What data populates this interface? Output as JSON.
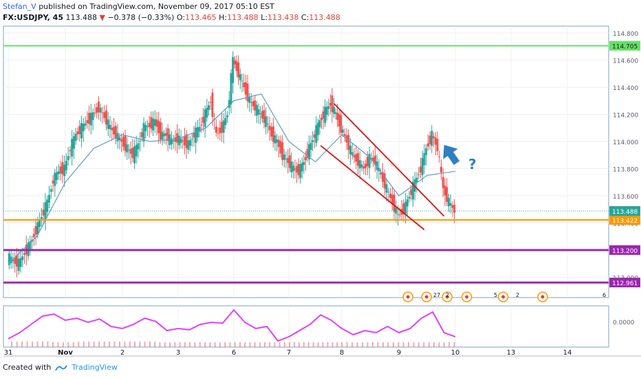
{
  "header": {
    "author": "Stefan_V",
    "published_text": "published on TradingView.com, November 09, 2017 05:10 EST",
    "symbol": "FX:USDJPY, 45",
    "last": "113.488",
    "change_arrow": "▼",
    "change": "−0.378 (−0.33%)",
    "open_label": "O:",
    "open": "113.465",
    "high_label": "H:",
    "high": "113.488",
    "low_label": "L:",
    "low": "113.438",
    "close_label": "C:",
    "close": "113.488"
  },
  "footer": {
    "created_with": "Created with",
    "brand": "TradingView"
  },
  "annotation": {
    "question_mark": "?"
  },
  "event_badges": [
    "27",
    "2",
    "5",
    "2",
    "6"
  ],
  "colors": {
    "up": "#26a69a",
    "down": "#ef5350",
    "ma": "#5d9bc4",
    "resistance": "#66e066",
    "support_orange": "#ff9800",
    "support_purple": "#9c27b0",
    "channel": "#e01010",
    "oscillator": "#e040fb",
    "arrow": "#2f7fc1"
  },
  "chart_data": {
    "type": "candlestick",
    "symbol": "FX:USDJPY",
    "interval": "45",
    "ylim": [
      112.85,
      114.85
    ],
    "y_ticks": [
      "114.800",
      "114.600",
      "114.400",
      "114.200",
      "114.000",
      "113.800",
      "113.600",
      "113.400",
      "113.200",
      "113.000"
    ],
    "x_ticks": [
      {
        "label": "31",
        "day": 0
      },
      {
        "label": "Nov",
        "day": 1
      },
      {
        "label": "2",
        "day": 2
      },
      {
        "label": "3",
        "day": 3
      },
      {
        "label": "6",
        "day": 4
      },
      {
        "label": "7",
        "day": 5
      },
      {
        "label": "8",
        "day": 6
      },
      {
        "label": "9",
        "day": 7
      },
      {
        "label": "10",
        "day": 8
      },
      {
        "label": "13",
        "day": 9
      },
      {
        "label": "14",
        "day": 10
      }
    ],
    "price_close_path": [
      [
        0.0,
        113.15
      ],
      [
        0.1,
        113.12
      ],
      [
        0.2,
        113.1
      ],
      [
        0.3,
        113.18
      ],
      [
        0.4,
        113.25
      ],
      [
        0.5,
        113.35
      ],
      [
        0.6,
        113.45
      ],
      [
        0.7,
        113.55
      ],
      [
        0.8,
        113.72
      ],
      [
        0.9,
        113.78
      ],
      [
        1.0,
        113.8
      ],
      [
        1.1,
        113.95
      ],
      [
        1.2,
        114.05
      ],
      [
        1.3,
        114.1
      ],
      [
        1.4,
        114.15
      ],
      [
        1.5,
        114.2
      ],
      [
        1.6,
        114.25
      ],
      [
        1.7,
        114.18
      ],
      [
        1.8,
        114.1
      ],
      [
        1.9,
        114.05
      ],
      [
        2.0,
        114.0
      ],
      [
        2.1,
        113.95
      ],
      [
        2.2,
        113.9
      ],
      [
        2.3,
        113.98
      ],
      [
        2.4,
        114.1
      ],
      [
        2.5,
        114.12
      ],
      [
        2.6,
        114.15
      ],
      [
        2.7,
        114.05
      ],
      [
        2.8,
        114.05
      ],
      [
        2.9,
        114.0
      ],
      [
        3.0,
        114.02
      ],
      [
        3.1,
        114.0
      ],
      [
        3.2,
        113.98
      ],
      [
        3.3,
        114.05
      ],
      [
        3.4,
        114.1
      ],
      [
        3.5,
        114.2
      ],
      [
        3.6,
        114.3
      ],
      [
        3.7,
        114.05
      ],
      [
        3.8,
        114.1
      ],
      [
        3.9,
        114.2
      ],
      [
        4.0,
        114.6
      ],
      [
        4.1,
        114.5
      ],
      [
        4.2,
        114.4
      ],
      [
        4.3,
        114.3
      ],
      [
        4.4,
        114.25
      ],
      [
        4.5,
        114.2
      ],
      [
        4.6,
        114.15
      ],
      [
        4.7,
        114.05
      ],
      [
        4.8,
        114.0
      ],
      [
        4.9,
        113.9
      ],
      [
        5.0,
        113.85
      ],
      [
        5.1,
        113.8
      ],
      [
        5.2,
        113.78
      ],
      [
        5.3,
        113.85
      ],
      [
        5.4,
        113.95
      ],
      [
        5.5,
        114.05
      ],
      [
        5.6,
        114.15
      ],
      [
        5.7,
        114.22
      ],
      [
        5.8,
        114.28
      ],
      [
        5.9,
        114.2
      ],
      [
        6.0,
        114.1
      ],
      [
        6.1,
        114.0
      ],
      [
        6.2,
        113.9
      ],
      [
        6.3,
        113.85
      ],
      [
        6.4,
        113.8
      ],
      [
        6.5,
        113.88
      ],
      [
        6.6,
        113.85
      ],
      [
        6.7,
        113.75
      ],
      [
        6.8,
        113.65
      ],
      [
        6.9,
        113.55
      ],
      [
        7.0,
        113.45
      ],
      [
        7.1,
        113.5
      ],
      [
        7.2,
        113.6
      ],
      [
        7.3,
        113.7
      ],
      [
        7.4,
        113.8
      ],
      [
        7.5,
        113.95
      ],
      [
        7.6,
        114.05
      ],
      [
        7.7,
        113.95
      ],
      [
        7.8,
        113.65
      ],
      [
        7.9,
        113.55
      ],
      [
        8.0,
        113.49
      ]
    ],
    "moving_average_path": [
      [
        0.0,
        113.1
      ],
      [
        0.5,
        113.3
      ],
      [
        1.0,
        113.7
      ],
      [
        1.5,
        113.95
      ],
      [
        2.0,
        114.05
      ],
      [
        2.5,
        114.0
      ],
      [
        3.0,
        114.02
      ],
      [
        3.5,
        114.1
      ],
      [
        4.0,
        114.3
      ],
      [
        4.5,
        114.35
      ],
      [
        5.0,
        114.0
      ],
      [
        5.5,
        113.85
      ],
      [
        6.0,
        114.05
      ],
      [
        6.5,
        113.88
      ],
      [
        7.0,
        113.6
      ],
      [
        7.5,
        113.75
      ],
      [
        8.0,
        113.78
      ]
    ],
    "oscillator_path": [
      [
        0.0,
        0.2
      ],
      [
        0.2,
        0.35
      ],
      [
        0.4,
        0.55
      ],
      [
        0.6,
        0.75
      ],
      [
        0.8,
        0.8
      ],
      [
        1.0,
        0.65
      ],
      [
        1.2,
        0.7
      ],
      [
        1.4,
        0.6
      ],
      [
        1.6,
        0.68
      ],
      [
        1.8,
        0.5
      ],
      [
        2.0,
        0.45
      ],
      [
        2.2,
        0.55
      ],
      [
        2.4,
        0.7
      ],
      [
        2.6,
        0.62
      ],
      [
        2.8,
        0.4
      ],
      [
        3.0,
        0.45
      ],
      [
        3.2,
        0.42
      ],
      [
        3.4,
        0.55
      ],
      [
        3.6,
        0.6
      ],
      [
        3.8,
        0.58
      ],
      [
        4.0,
        0.9
      ],
      [
        4.2,
        0.6
      ],
      [
        4.4,
        0.45
      ],
      [
        4.6,
        0.5
      ],
      [
        4.8,
        0.15
      ],
      [
        5.0,
        0.25
      ],
      [
        5.2,
        0.4
      ],
      [
        5.4,
        0.55
      ],
      [
        5.6,
        0.78
      ],
      [
        5.8,
        0.65
      ],
      [
        6.0,
        0.45
      ],
      [
        6.2,
        0.3
      ],
      [
        6.4,
        0.4
      ],
      [
        6.6,
        0.35
      ],
      [
        6.8,
        0.5
      ],
      [
        7.0,
        0.35
      ],
      [
        7.2,
        0.45
      ],
      [
        7.4,
        0.7
      ],
      [
        7.6,
        0.85
      ],
      [
        7.8,
        0.35
      ],
      [
        8.0,
        0.25
      ]
    ],
    "annotations": [
      {
        "type": "horizontal_line",
        "label": "114.705",
        "price": 114.705
      },
      {
        "type": "horizontal_line",
        "label": "113.422",
        "price": 113.422
      },
      {
        "type": "horizontal_line",
        "label": "113.200",
        "price": 113.2
      },
      {
        "type": "horizontal_line",
        "label": "112.961",
        "price": 112.961
      },
      {
        "type": "channel_upper",
        "from": [
          5.85,
          114.28
        ],
        "to": [
          7.8,
          113.45
        ]
      },
      {
        "type": "channel_lower",
        "from": [
          5.6,
          113.97
        ],
        "to": [
          7.45,
          113.35
        ]
      }
    ],
    "last_price_label": "113.488",
    "oscillator_tick": "0.0000"
  }
}
